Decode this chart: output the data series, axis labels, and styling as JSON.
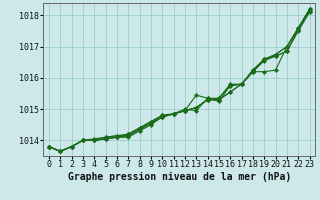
{
  "x": [
    0,
    1,
    2,
    3,
    4,
    5,
    6,
    7,
    8,
    9,
    10,
    11,
    12,
    13,
    14,
    15,
    16,
    17,
    18,
    19,
    20,
    21,
    22,
    23
  ],
  "series": [
    [
      1013.8,
      1013.65,
      1013.8,
      1014.0,
      1014.0,
      1014.05,
      1014.1,
      1014.2,
      1014.4,
      1014.6,
      1014.8,
      1014.85,
      1015.0,
      1014.95,
      1015.35,
      1015.35,
      1015.75,
      1015.8,
      1016.2,
      1016.2,
      1016.25,
      1017.0,
      1017.55,
      1018.2
    ],
    [
      1013.8,
      1013.65,
      1013.8,
      1014.0,
      1014.0,
      1014.05,
      1014.1,
      1014.15,
      1014.35,
      1014.55,
      1014.75,
      1014.85,
      1014.95,
      1015.45,
      1015.35,
      1015.25,
      1015.75,
      1015.8,
      1016.25,
      1016.6,
      1016.75,
      1017.0,
      1017.6,
      1018.2
    ],
    [
      1013.8,
      1013.65,
      1013.8,
      1014.0,
      1014.0,
      1014.1,
      1014.15,
      1014.15,
      1014.35,
      1014.55,
      1014.75,
      1014.85,
      1014.95,
      1015.05,
      1015.3,
      1015.3,
      1015.55,
      1015.8,
      1016.25,
      1016.6,
      1016.7,
      1016.85,
      1017.55,
      1018.15
    ],
    [
      1013.8,
      1013.65,
      1013.8,
      1014.0,
      1014.05,
      1014.1,
      1014.15,
      1014.2,
      1014.4,
      1014.6,
      1014.8,
      1014.85,
      1014.95,
      1015.05,
      1015.3,
      1015.35,
      1015.8,
      1015.8,
      1016.2,
      1016.6,
      1016.75,
      1017.0,
      1017.6,
      1018.2
    ],
    [
      1013.8,
      1013.65,
      1013.8,
      1014.0,
      1014.0,
      1014.05,
      1014.1,
      1014.1,
      1014.3,
      1014.5,
      1014.75,
      1014.85,
      1014.95,
      1015.05,
      1015.3,
      1015.3,
      1015.55,
      1015.8,
      1016.2,
      1016.55,
      1016.7,
      1016.85,
      1017.5,
      1018.1
    ]
  ],
  "line_color": "#1a6b1a",
  "marker_color": "#1a6b1a",
  "bg_color": "#cce8e8",
  "grid_color": "#99cccc",
  "title": "Graphe pression niveau de la mer (hPa)",
  "xlabel_ticks": [
    "0",
    "1",
    "2",
    "3",
    "4",
    "5",
    "6",
    "7",
    "8",
    "9",
    "10",
    "11",
    "12",
    "13",
    "14",
    "15",
    "16",
    "17",
    "18",
    "19",
    "20",
    "21",
    "22",
    "23"
  ],
  "ylim": [
    1013.5,
    1018.4
  ],
  "yticks": [
    1014,
    1015,
    1016,
    1017,
    1018
  ],
  "title_fontsize": 7.0,
  "tick_fontsize": 6.0
}
